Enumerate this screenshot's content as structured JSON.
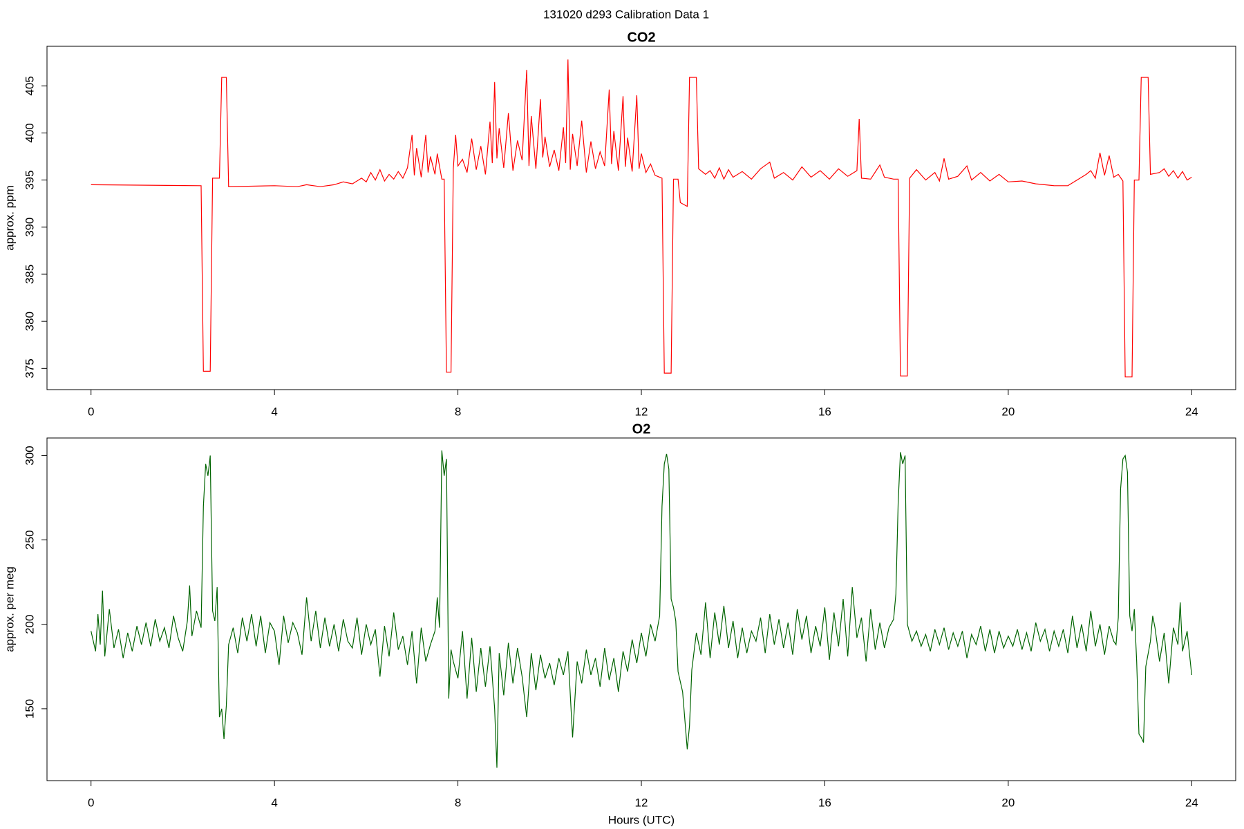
{
  "title": "131020   d293   Calibration Data 1",
  "chart_data": [
    {
      "type": "line",
      "title": "CO2",
      "ylabel": "approx. ppm",
      "color": "#ff0000",
      "xlim": [
        -0.96,
        24.96
      ],
      "xticks": [
        0,
        4,
        8,
        12,
        16,
        20,
        24
      ],
      "ylim": [
        372.75,
        409.2
      ],
      "yticks": [
        375,
        380,
        385,
        390,
        395,
        400,
        405
      ],
      "x": [
        0,
        2.4,
        2.45,
        2.6,
        2.65,
        2.8,
        2.85,
        2.95,
        3.0,
        4.0,
        4.5,
        4.7,
        5.0,
        5.3,
        5.5,
        5.7,
        5.9,
        6.0,
        6.1,
        6.2,
        6.3,
        6.4,
        6.5,
        6.6,
        6.7,
        6.8,
        6.9,
        7.0,
        7.05,
        7.1,
        7.2,
        7.3,
        7.35,
        7.4,
        7.5,
        7.55,
        7.65,
        7.7,
        7.75,
        7.85,
        7.9,
        7.95,
        8.0,
        8.1,
        8.2,
        8.3,
        8.4,
        8.5,
        8.6,
        8.7,
        8.75,
        8.8,
        8.85,
        8.9,
        9.0,
        9.1,
        9.2,
        9.3,
        9.4,
        9.5,
        9.55,
        9.6,
        9.7,
        9.8,
        9.85,
        9.9,
        10.0,
        10.1,
        10.2,
        10.3,
        10.35,
        10.4,
        10.45,
        10.5,
        10.6,
        10.7,
        10.8,
        10.9,
        11.0,
        11.1,
        11.2,
        11.3,
        11.35,
        11.4,
        11.5,
        11.6,
        11.65,
        11.7,
        11.8,
        11.9,
        11.95,
        12.0,
        12.1,
        12.2,
        12.3,
        12.45,
        12.5,
        12.65,
        12.7,
        12.8,
        12.85,
        13.0,
        13.05,
        13.2,
        13.25,
        13.4,
        13.5,
        13.6,
        13.7,
        13.8,
        13.9,
        14.0,
        14.2,
        14.4,
        14.6,
        14.8,
        14.9,
        15.1,
        15.3,
        15.5,
        15.7,
        15.9,
        16.1,
        16.3,
        16.5,
        16.7,
        16.75,
        16.8,
        17.0,
        17.2,
        17.3,
        17.5,
        17.6,
        17.65,
        17.8,
        17.85,
        18.0,
        18.2,
        18.4,
        18.5,
        18.6,
        18.7,
        18.9,
        19.1,
        19.2,
        19.4,
        19.6,
        19.8,
        20.0,
        20.3,
        20.6,
        21.0,
        21.3,
        21.5,
        21.7,
        21.8,
        21.9,
        22.0,
        22.1,
        22.2,
        22.3,
        22.4,
        22.5,
        22.55,
        22.7,
        22.75,
        22.85,
        22.9,
        23.05,
        23.1,
        23.3,
        23.4,
        23.5,
        23.6,
        23.7,
        23.8,
        23.9,
        24.0
      ],
      "values": [
        394.5,
        394.4,
        374.7,
        374.7,
        395.2,
        395.2,
        405.9,
        405.9,
        394.3,
        394.4,
        394.3,
        394.5,
        394.3,
        394.5,
        394.8,
        394.6,
        395.2,
        394.8,
        395.8,
        395.0,
        396.1,
        394.9,
        395.6,
        395.1,
        395.9,
        395.2,
        396.3,
        399.8,
        395.5,
        398.4,
        395.3,
        399.8,
        395.8,
        397.5,
        395.6,
        397.8,
        395.1,
        395.1,
        374.6,
        374.6,
        396.2,
        399.8,
        396.5,
        397.2,
        395.8,
        399.4,
        396.1,
        398.6,
        395.6,
        401.2,
        396.8,
        405.4,
        397.3,
        400.5,
        396.3,
        402.1,
        396.0,
        399.2,
        397.1,
        406.7,
        396.5,
        401.8,
        396.2,
        403.6,
        397.4,
        399.6,
        396.4,
        398.2,
        396.0,
        400.6,
        396.8,
        407.8,
        396.1,
        399.9,
        396.5,
        401.3,
        395.8,
        399.1,
        396.2,
        398.0,
        396.5,
        404.6,
        396.7,
        400.2,
        396.0,
        403.9,
        396.4,
        399.5,
        395.9,
        404.0,
        396.2,
        397.8,
        395.8,
        396.7,
        395.5,
        395.2,
        374.5,
        374.5,
        395.1,
        395.1,
        392.6,
        392.2,
        405.9,
        405.9,
        396.2,
        395.6,
        396.0,
        395.2,
        396.3,
        395.1,
        396.1,
        395.3,
        395.9,
        395.1,
        396.2,
        396.9,
        395.2,
        395.8,
        395.0,
        396.4,
        395.3,
        396.0,
        395.1,
        396.2,
        395.4,
        396.0,
        401.5,
        395.2,
        395.1,
        396.6,
        395.3,
        395.1,
        395.1,
        374.2,
        374.2,
        395.2,
        396.1,
        395.0,
        395.8,
        394.9,
        397.3,
        395.1,
        395.4,
        396.5,
        395.0,
        395.8,
        394.9,
        395.6,
        394.8,
        394.9,
        394.6,
        394.4,
        394.4,
        395.0,
        395.6,
        396.0,
        395.2,
        397.9,
        395.5,
        397.6,
        395.3,
        395.6,
        394.9,
        374.1,
        374.1,
        395.0,
        395.0,
        405.9,
        405.9,
        395.6,
        395.8,
        396.2,
        395.4,
        396.0,
        395.2,
        395.9,
        395.0,
        395.3
      ]
    },
    {
      "type": "line",
      "title": "O2",
      "ylabel": "approx. per meg",
      "xlabel": "Hours (UTC)",
      "color": "#006400",
      "xlim": [
        -0.96,
        24.96
      ],
      "xticks": [
        0,
        4,
        8,
        12,
        16,
        20,
        24
      ],
      "ylim": [
        107.4,
        310.4
      ],
      "yticks": [
        150,
        200,
        250,
        300
      ],
      "x": [
        0,
        0.1,
        0.15,
        0.2,
        0.25,
        0.3,
        0.4,
        0.5,
        0.6,
        0.7,
        0.8,
        0.9,
        1.0,
        1.1,
        1.2,
        1.3,
        1.4,
        1.5,
        1.6,
        1.7,
        1.8,
        1.9,
        2.0,
        2.1,
        2.15,
        2.2,
        2.3,
        2.4,
        2.45,
        2.5,
        2.55,
        2.6,
        2.65,
        2.7,
        2.75,
        2.8,
        2.85,
        2.9,
        2.95,
        3.0,
        3.1,
        3.2,
        3.3,
        3.4,
        3.5,
        3.6,
        3.7,
        3.8,
        3.9,
        4.0,
        4.1,
        4.2,
        4.3,
        4.4,
        4.5,
        4.6,
        4.7,
        4.8,
        4.9,
        5.0,
        5.1,
        5.2,
        5.3,
        5.4,
        5.5,
        5.6,
        5.7,
        5.8,
        5.9,
        6.0,
        6.1,
        6.2,
        6.3,
        6.4,
        6.5,
        6.6,
        6.7,
        6.8,
        6.9,
        7.0,
        7.1,
        7.2,
        7.3,
        7.4,
        7.5,
        7.55,
        7.6,
        7.65,
        7.7,
        7.75,
        7.8,
        7.85,
        7.9,
        8.0,
        8.1,
        8.2,
        8.3,
        8.4,
        8.5,
        8.6,
        8.7,
        8.8,
        8.85,
        8.9,
        9.0,
        9.1,
        9.2,
        9.3,
        9.4,
        9.5,
        9.6,
        9.7,
        9.8,
        9.9,
        10.0,
        10.1,
        10.2,
        10.3,
        10.4,
        10.5,
        10.6,
        10.7,
        10.8,
        10.9,
        11.0,
        11.1,
        11.2,
        11.3,
        11.4,
        11.5,
        11.6,
        11.7,
        11.8,
        11.9,
        12.0,
        12.1,
        12.2,
        12.3,
        12.4,
        12.45,
        12.5,
        12.55,
        12.6,
        12.65,
        12.7,
        12.75,
        12.8,
        12.9,
        13.0,
        13.05,
        13.1,
        13.2,
        13.3,
        13.4,
        13.5,
        13.6,
        13.7,
        13.8,
        13.9,
        14.0,
        14.1,
        14.2,
        14.3,
        14.4,
        14.5,
        14.6,
        14.7,
        14.8,
        14.9,
        15.0,
        15.1,
        15.2,
        15.3,
        15.4,
        15.5,
        15.6,
        15.7,
        15.8,
        15.9,
        16.0,
        16.1,
        16.2,
        16.3,
        16.4,
        16.5,
        16.6,
        16.7,
        16.8,
        16.9,
        17.0,
        17.1,
        17.2,
        17.3,
        17.4,
        17.5,
        17.55,
        17.6,
        17.65,
        17.7,
        17.75,
        17.8,
        17.9,
        18.0,
        18.1,
        18.2,
        18.3,
        18.4,
        18.5,
        18.6,
        18.7,
        18.8,
        18.9,
        19.0,
        19.1,
        19.2,
        19.3,
        19.4,
        19.5,
        19.6,
        19.7,
        19.8,
        19.9,
        20.0,
        20.1,
        20.2,
        20.3,
        20.4,
        20.5,
        20.6,
        20.7,
        20.8,
        20.9,
        21.0,
        21.1,
        21.2,
        21.3,
        21.4,
        21.5,
        21.6,
        21.7,
        21.8,
        21.9,
        22.0,
        22.1,
        22.2,
        22.3,
        22.35,
        22.4,
        22.45,
        22.5,
        22.55,
        22.6,
        22.65,
        22.7,
        22.75,
        22.8,
        22.85,
        22.9,
        22.95,
        23.0,
        23.1,
        23.15,
        23.2,
        23.3,
        23.4,
        23.5,
        23.6,
        23.7,
        23.75,
        23.8,
        23.9,
        24.0
      ],
      "values": [
        196,
        184,
        206,
        188,
        220,
        181,
        209,
        186,
        197,
        180,
        195,
        184,
        199,
        188,
        201,
        187,
        203,
        190,
        198,
        186,
        205,
        192,
        184,
        202,
        223,
        193,
        208,
        198,
        270,
        295,
        288,
        300,
        208,
        202,
        222,
        145,
        150,
        132,
        152,
        188,
        198,
        183,
        204,
        190,
        206,
        187,
        205,
        183,
        201,
        196,
        176,
        205,
        189,
        201,
        195,
        182,
        216,
        190,
        208,
        186,
        204,
        187,
        200,
        184,
        203,
        190,
        186,
        204,
        182,
        200,
        188,
        197,
        169,
        199,
        181,
        207,
        185,
        193,
        176,
        196,
        165,
        198,
        178,
        188,
        196,
        216,
        198,
        303,
        288,
        298,
        156,
        185,
        178,
        168,
        196,
        156,
        192,
        160,
        186,
        163,
        187,
        150,
        115,
        183,
        158,
        189,
        165,
        186,
        169,
        145,
        183,
        161,
        182,
        168,
        177,
        164,
        180,
        170,
        184,
        133,
        178,
        165,
        185,
        170,
        180,
        163,
        186,
        167,
        180,
        160,
        184,
        172,
        191,
        177,
        195,
        181,
        200,
        190,
        205,
        270,
        295,
        301,
        292,
        215,
        210,
        202,
        172,
        160,
        126,
        140,
        173,
        195,
        182,
        213,
        180,
        207,
        188,
        211,
        186,
        202,
        180,
        198,
        183,
        196,
        190,
        204,
        183,
        206,
        188,
        203,
        186,
        201,
        182,
        209,
        191,
        205,
        183,
        199,
        187,
        210,
        179,
        207,
        187,
        215,
        181,
        222,
        192,
        204,
        178,
        209,
        185,
        201,
        186,
        198,
        203,
        218,
        272,
        302,
        295,
        300,
        200,
        190,
        196,
        187,
        194,
        184,
        197,
        188,
        198,
        185,
        195,
        187,
        196,
        180,
        194,
        188,
        199,
        184,
        197,
        183,
        196,
        186,
        193,
        187,
        197,
        185,
        195,
        184,
        201,
        190,
        197,
        184,
        196,
        187,
        197,
        183,
        205,
        186,
        200,
        184,
        208,
        187,
        200,
        182,
        199,
        190,
        188,
        204,
        280,
        298,
        300,
        290,
        205,
        196,
        209,
        178,
        135,
        133,
        130,
        175,
        190,
        205,
        198,
        178,
        195,
        165,
        198,
        188,
        213,
        184,
        196,
        170
      ]
    }
  ]
}
